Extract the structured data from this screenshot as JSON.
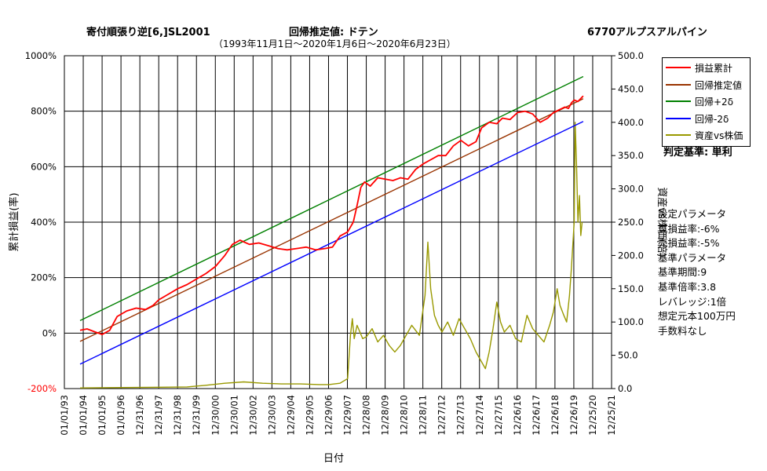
{
  "header": {
    "strategy": "寄付順張り逆[6,]SL2001",
    "regression": "回帰推定値: ドテン",
    "stock": "6770アルプスアルパイン",
    "period": "（1993年11月1日～2020年1月6日～2020年6月23日）"
  },
  "judge": "判定基準: 単利",
  "params": [
    "設定パラメータ",
    "買損益率:-6%",
    "売損益率:-5%",
    "基準パラメータ",
    "基準期間:9",
    "基準倍率:3.8",
    "レバレッジ:1倍",
    "想定元本100万円",
    "手数料なし"
  ],
  "colors": {
    "pnl": "#ff0000",
    "regression": "#993300",
    "upper": "#008000",
    "lower": "#0000ff",
    "ratio": "#999900"
  },
  "chart_data": {
    "type": "line",
    "xlabel": "日付",
    "ylabel": "累計損益(率)",
    "y2label": "資産vs株価(倍)",
    "ylim": [
      -200,
      1000
    ],
    "y2lim": [
      0,
      500
    ],
    "grid": true,
    "legend_position": "right",
    "y_ticks": [
      "-200%",
      "0%",
      "200%",
      "400%",
      "600%",
      "800%",
      "1000%"
    ],
    "y2_ticks": [
      "0.0",
      "50.0",
      "100.0",
      "150.0",
      "200.0",
      "250.0",
      "300.0",
      "350.0",
      "400.0",
      "450.0",
      "500.0"
    ],
    "x_ticks": [
      "01/01/93",
      "01/01/94",
      "01/01/95",
      "01/01/96",
      "12/31/96",
      "12/31/97",
      "12/31/98",
      "12/31/99",
      "12/30/00",
      "12/30/01",
      "12/30/02",
      "12/30/03",
      "12/29/04",
      "12/29/05",
      "12/29/06",
      "12/29/07",
      "12/28/08",
      "12/28/09",
      "12/28/10",
      "12/28/11",
      "12/27/12",
      "12/27/13",
      "12/27/14",
      "12/27/15",
      "12/26/16",
      "12/26/17",
      "12/26/18",
      "12/26/19",
      "12/25/20",
      "12/25/21"
    ],
    "series": [
      {
        "name": "損益累計",
        "axis": "left",
        "points": [
          [
            1993.83,
            10
          ],
          [
            1994.2,
            15
          ],
          [
            1994.6,
            5
          ],
          [
            1995.0,
            -5
          ],
          [
            1995.4,
            10
          ],
          [
            1995.8,
            60
          ],
          [
            1996.3,
            80
          ],
          [
            1996.8,
            90
          ],
          [
            1997.3,
            85
          ],
          [
            1997.7,
            100
          ],
          [
            1998.0,
            120
          ],
          [
            1998.5,
            140
          ],
          [
            1999.0,
            160
          ],
          [
            1999.5,
            175
          ],
          [
            2000.0,
            195
          ],
          [
            2000.5,
            215
          ],
          [
            2001.0,
            240
          ],
          [
            2001.5,
            280
          ],
          [
            2001.9,
            320
          ],
          [
            2002.3,
            335
          ],
          [
            2002.8,
            320
          ],
          [
            2003.3,
            325
          ],
          [
            2003.8,
            315
          ],
          [
            2004.3,
            305
          ],
          [
            2004.8,
            300
          ],
          [
            2005.3,
            305
          ],
          [
            2005.8,
            310
          ],
          [
            2006.3,
            300
          ],
          [
            2006.8,
            305
          ],
          [
            2007.2,
            310
          ],
          [
            2007.6,
            350
          ],
          [
            2008.0,
            365
          ],
          [
            2008.3,
            400
          ],
          [
            2008.5,
            460
          ],
          [
            2008.7,
            525
          ],
          [
            2008.9,
            545
          ],
          [
            2009.2,
            530
          ],
          [
            2009.6,
            560
          ],
          [
            2010.0,
            555
          ],
          [
            2010.4,
            550
          ],
          [
            2010.8,
            560
          ],
          [
            2011.2,
            555
          ],
          [
            2011.6,
            590
          ],
          [
            2012.0,
            610
          ],
          [
            2012.4,
            625
          ],
          [
            2012.8,
            640
          ],
          [
            2013.2,
            640
          ],
          [
            2013.6,
            675
          ],
          [
            2014.0,
            695
          ],
          [
            2014.4,
            675
          ],
          [
            2014.8,
            690
          ],
          [
            2015.1,
            740
          ],
          [
            2015.5,
            760
          ],
          [
            2015.9,
            755
          ],
          [
            2016.2,
            775
          ],
          [
            2016.6,
            770
          ],
          [
            2017.0,
            795
          ],
          [
            2017.4,
            800
          ],
          [
            2017.8,
            790
          ],
          [
            2018.2,
            760
          ],
          [
            2018.6,
            775
          ],
          [
            2018.9,
            795
          ],
          [
            2019.2,
            805
          ],
          [
            2019.5,
            815
          ],
          [
            2019.7,
            810
          ],
          [
            2019.85,
            830
          ],
          [
            2020.0,
            840
          ],
          [
            2020.2,
            835
          ],
          [
            2020.48,
            855
          ]
        ]
      },
      {
        "name": "回帰推定値",
        "axis": "left",
        "points": [
          [
            1993.83,
            -30
          ],
          [
            2020.48,
            845
          ]
        ]
      },
      {
        "name": "回帰+2δ",
        "axis": "left",
        "points": [
          [
            1993.83,
            45
          ],
          [
            2020.48,
            925
          ]
        ]
      },
      {
        "name": "回帰-2δ",
        "axis": "left",
        "points": [
          [
            1993.83,
            -112
          ],
          [
            2020.48,
            763
          ]
        ]
      },
      {
        "name": "資産vs株価",
        "axis": "right",
        "points": [
          [
            1993.83,
            1
          ],
          [
            1996.0,
            1.5
          ],
          [
            1998.0,
            2
          ],
          [
            1999.5,
            2.5
          ],
          [
            2000.5,
            5
          ],
          [
            2001.5,
            8
          ],
          [
            2002.5,
            10
          ],
          [
            2003.5,
            8
          ],
          [
            2004.5,
            7
          ],
          [
            2005.5,
            7
          ],
          [
            2006.5,
            6
          ],
          [
            2007.0,
            6
          ],
          [
            2007.6,
            8
          ],
          [
            2008.0,
            15
          ],
          [
            2008.15,
            80
          ],
          [
            2008.25,
            105
          ],
          [
            2008.35,
            75
          ],
          [
            2008.5,
            95
          ],
          [
            2008.8,
            75
          ],
          [
            2009.0,
            78
          ],
          [
            2009.3,
            90
          ],
          [
            2009.6,
            70
          ],
          [
            2009.9,
            80
          ],
          [
            2010.2,
            65
          ],
          [
            2010.5,
            55
          ],
          [
            2010.8,
            65
          ],
          [
            2011.0,
            75
          ],
          [
            2011.4,
            95
          ],
          [
            2011.8,
            80
          ],
          [
            2012.1,
            140
          ],
          [
            2012.25,
            220
          ],
          [
            2012.4,
            150
          ],
          [
            2012.6,
            110
          ],
          [
            2012.8,
            95
          ],
          [
            2013.0,
            85
          ],
          [
            2013.3,
            100
          ],
          [
            2013.6,
            80
          ],
          [
            2013.9,
            105
          ],
          [
            2014.2,
            90
          ],
          [
            2014.5,
            75
          ],
          [
            2014.8,
            55
          ],
          [
            2015.1,
            40
          ],
          [
            2015.3,
            30
          ],
          [
            2015.5,
            55
          ],
          [
            2015.7,
            90
          ],
          [
            2015.9,
            130
          ],
          [
            2016.1,
            100
          ],
          [
            2016.3,
            85
          ],
          [
            2016.6,
            95
          ],
          [
            2016.9,
            75
          ],
          [
            2017.2,
            70
          ],
          [
            2017.5,
            110
          ],
          [
            2017.8,
            90
          ],
          [
            2018.1,
            80
          ],
          [
            2018.4,
            70
          ],
          [
            2018.7,
            95
          ],
          [
            2018.9,
            115
          ],
          [
            2019.1,
            150
          ],
          [
            2019.25,
            125
          ],
          [
            2019.45,
            110
          ],
          [
            2019.6,
            100
          ],
          [
            2019.75,
            140
          ],
          [
            2019.85,
            180
          ],
          [
            2020.0,
            250
          ],
          [
            2020.05,
            400
          ],
          [
            2020.12,
            340
          ],
          [
            2020.2,
            250
          ],
          [
            2020.28,
            290
          ],
          [
            2020.35,
            230
          ],
          [
            2020.42,
            250
          ]
        ]
      }
    ]
  }
}
